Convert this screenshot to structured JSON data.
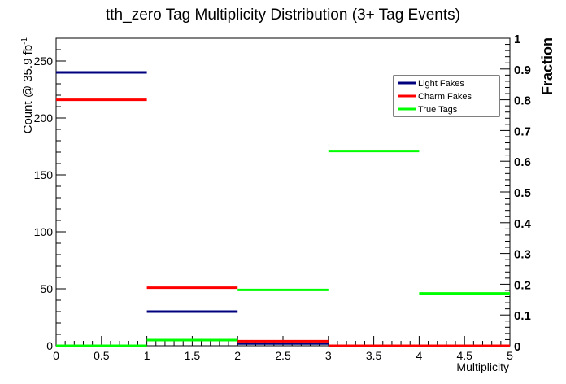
{
  "chart_data": {
    "type": "step-histogram",
    "title": "tth_zero Tag Multiplicity Distribution (3+ Tag Events)",
    "xlabel": "Multiplicity",
    "ylabel_left": "Count @ 35.9 fb",
    "ylabel_left_superscript": "-1",
    "ylabel_right": "Fraction",
    "xlim": [
      0,
      5
    ],
    "ylim_left": [
      0,
      270
    ],
    "ylim_right": [
      0,
      1
    ],
    "x_ticks": [
      "0",
      "0.5",
      "1",
      "1.5",
      "2",
      "2.5",
      "3",
      "3.5",
      "4",
      "4.5",
      "5"
    ],
    "y_ticks_left": [
      "0",
      "50",
      "100",
      "150",
      "200",
      "250"
    ],
    "y_ticks_right": [
      "0",
      "0.1",
      "0.2",
      "0.3",
      "0.4",
      "0.5",
      "0.6",
      "0.7",
      "0.8",
      "0.9",
      "1"
    ],
    "bin_edges": [
      0,
      1,
      2,
      3,
      4,
      5
    ],
    "series": [
      {
        "name": "Light Fakes",
        "color": "#00007f",
        "values": [
          240,
          30,
          2,
          0,
          0
        ]
      },
      {
        "name": "Charm Fakes",
        "color": "#ff0000",
        "values": [
          216,
          51,
          4,
          0,
          0
        ]
      },
      {
        "name": "True Tags",
        "color": "#00ff00",
        "values": [
          0,
          5,
          49,
          171,
          46
        ]
      }
    ],
    "legend_position": "top-right"
  }
}
